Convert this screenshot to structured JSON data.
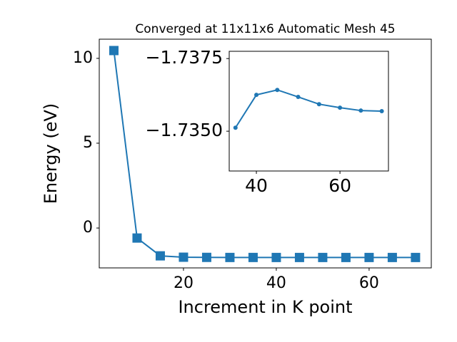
{
  "chart_data": [
    {
      "type": "line",
      "title": "Converged at 11x11x6 Automatic Mesh 45",
      "xlabel": "Increment in K point",
      "ylabel": "Energy (eV)",
      "x": [
        5,
        10,
        15,
        20,
        25,
        30,
        35,
        40,
        45,
        50,
        55,
        60,
        65,
        70
      ],
      "series": [
        {
          "color": "#1f77b4",
          "marker": "square",
          "values": [
            10.46,
            -0.59,
            -1.64,
            -1.72,
            -1.73,
            -1.735,
            -1.735,
            -1.736,
            -1.736,
            -1.736,
            -1.736,
            -1.736,
            -1.736,
            -1.736
          ]
        }
      ],
      "xlim": [
        1.85,
        73.4
      ],
      "ylim": [
        -2.35,
        11.13
      ],
      "xticks": [
        20,
        40,
        60
      ],
      "yticks": [
        0,
        5,
        10
      ]
    },
    {
      "type": "line",
      "x": [
        35,
        40,
        45,
        50,
        55,
        60,
        65,
        70
      ],
      "series": [
        {
          "color": "#1f77b4",
          "marker": "circle",
          "values": [
            -1.73512,
            -1.73625,
            -1.73642,
            -1.73618,
            -1.73593,
            -1.73581,
            -1.73571,
            -1.73569
          ]
        }
      ],
      "xlim": [
        33.5,
        71.6
      ],
      "ylim": [
        -1.73363,
        -1.73775
      ],
      "xticks": [
        40,
        60
      ],
      "yticks": [
        {
          "value": -1.7375,
          "label": "−1.7375"
        },
        {
          "value": -1.735,
          "label": "−1.7350"
        }
      ]
    }
  ]
}
